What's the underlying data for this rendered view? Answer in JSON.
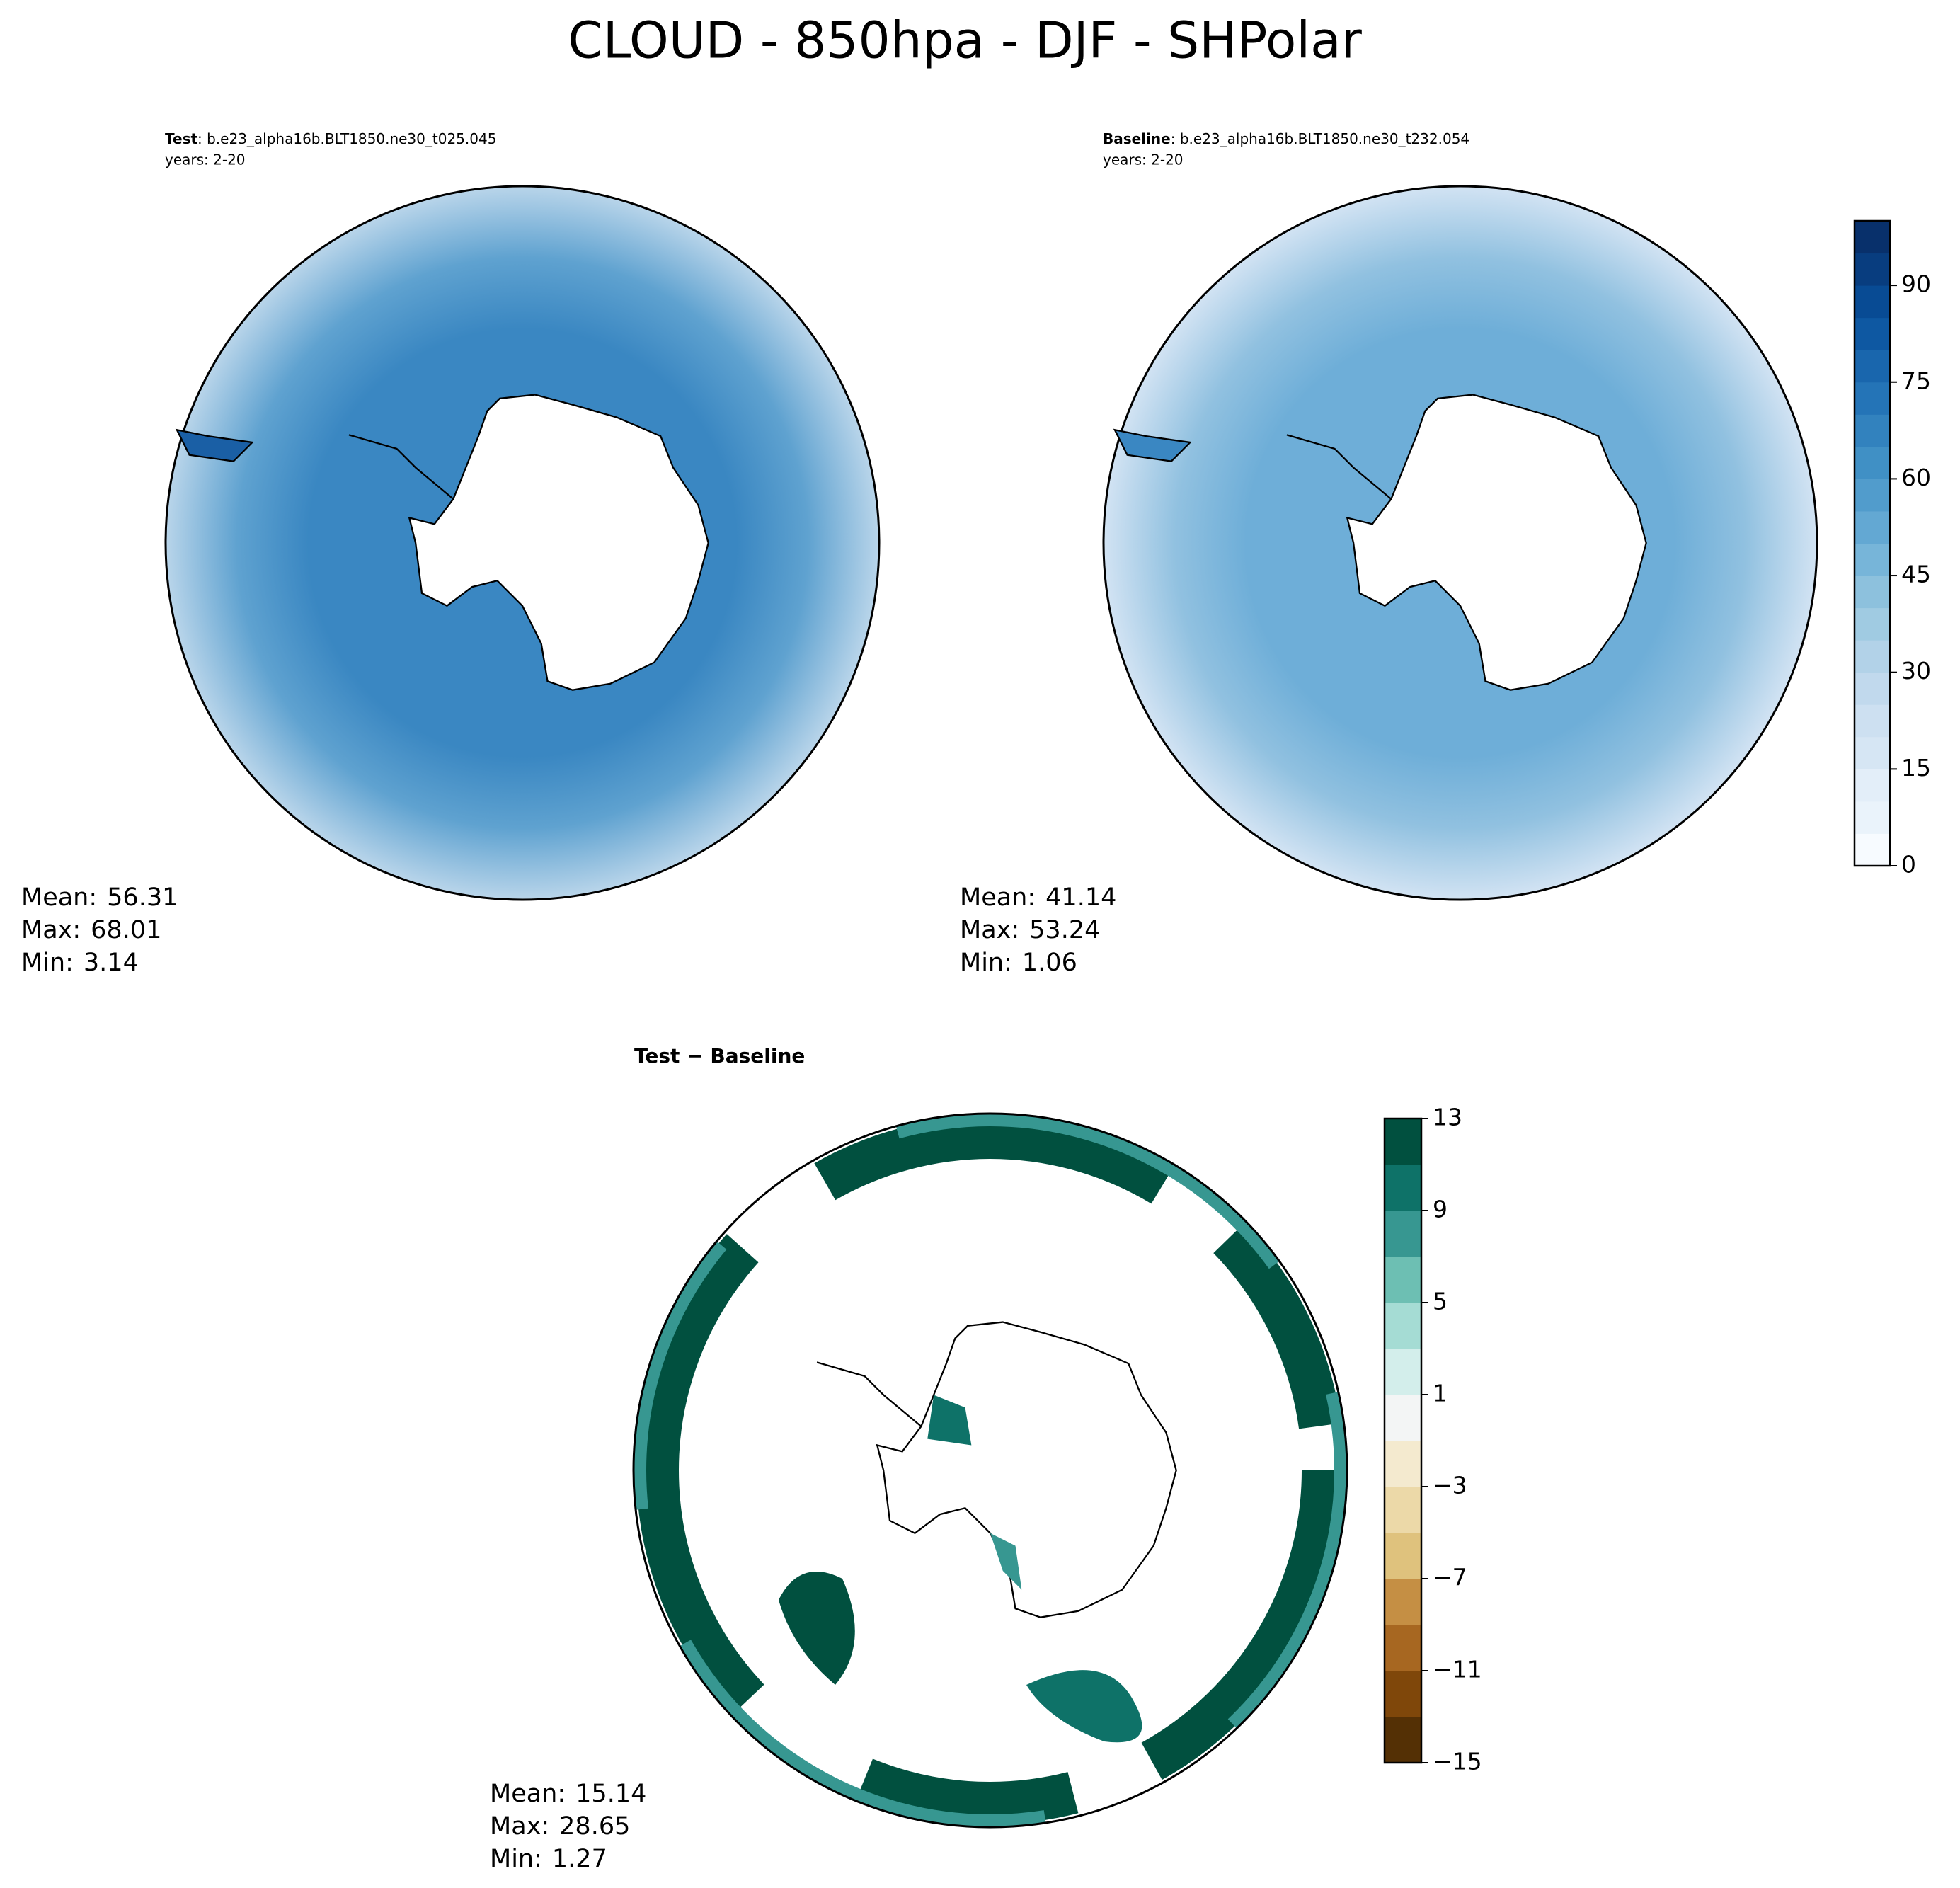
{
  "title": "CLOUD - 850hpa - DJF - SHPolar",
  "panels": [
    {
      "label_bold": "Test",
      "label_rest": ": b.e23_alpha16b.BLT1850.ne30_t025.045",
      "years": "years: 2-20",
      "stats": [
        {
          "label": "Mean:",
          "value": 56.31
        },
        {
          "label": "Max:",
          "value": 68.01
        },
        {
          "label": "Min:",
          "value": 3.14
        }
      ]
    },
    {
      "label_bold": "Baseline",
      "label_rest": ": b.e23_alpha16b.BLT1850.ne30_t232.054",
      "years": "years: 2-20",
      "stats": [
        {
          "label": "Mean:",
          "value": 41.14
        },
        {
          "label": "Max:",
          "value": 53.24
        },
        {
          "label": "Min:",
          "value": 1.06
        }
      ]
    },
    {
      "label_bold": "Test − Baseline",
      "stats": [
        {
          "label": "Mean:",
          "value": 15.14
        },
        {
          "label": "Max:",
          "value": 28.65
        },
        {
          "label": "Min:",
          "value": 1.27
        }
      ]
    }
  ],
  "colorbars": [
    {
      "lim": [
        0,
        100
      ],
      "ticks": [
        0,
        15,
        30,
        45,
        60,
        75,
        90
      ],
      "colors": [
        "#f7fbff",
        "#eaf3fb",
        "#e3eef9",
        "#d6e6f4",
        "#cde0f1",
        "#c1d9ed",
        "#b2d2e8",
        "#a0cbe2",
        "#8dc1dd",
        "#77b5d9",
        "#63a8d3",
        "#519ccc",
        "#4090c5",
        "#3282be",
        "#2474b7",
        "#1966ad",
        "#0e58a2",
        "#084b94",
        "#083d7f",
        "#08306b"
      ]
    },
    {
      "lim": [
        -15,
        13
      ],
      "ticks": [
        13,
        9,
        5,
        1,
        {
          "value": -3,
          "label": "−3"
        },
        {
          "value": -7,
          "label": "−7"
        },
        {
          "value": -11,
          "label": "−11"
        },
        {
          "value": -15,
          "label": "−15"
        }
      ],
      "colors": [
        "#543005",
        "#7f470a",
        "#a76721",
        "#c58f44",
        "#dfc27d",
        "#ecd9a8",
        "#f4eacf",
        "#f3f5f5",
        "#d3eeeb",
        "#a5dcd4",
        "#6dbfb3",
        "#379791",
        "#0e7268",
        "#01503f"
      ]
    }
  ]
}
